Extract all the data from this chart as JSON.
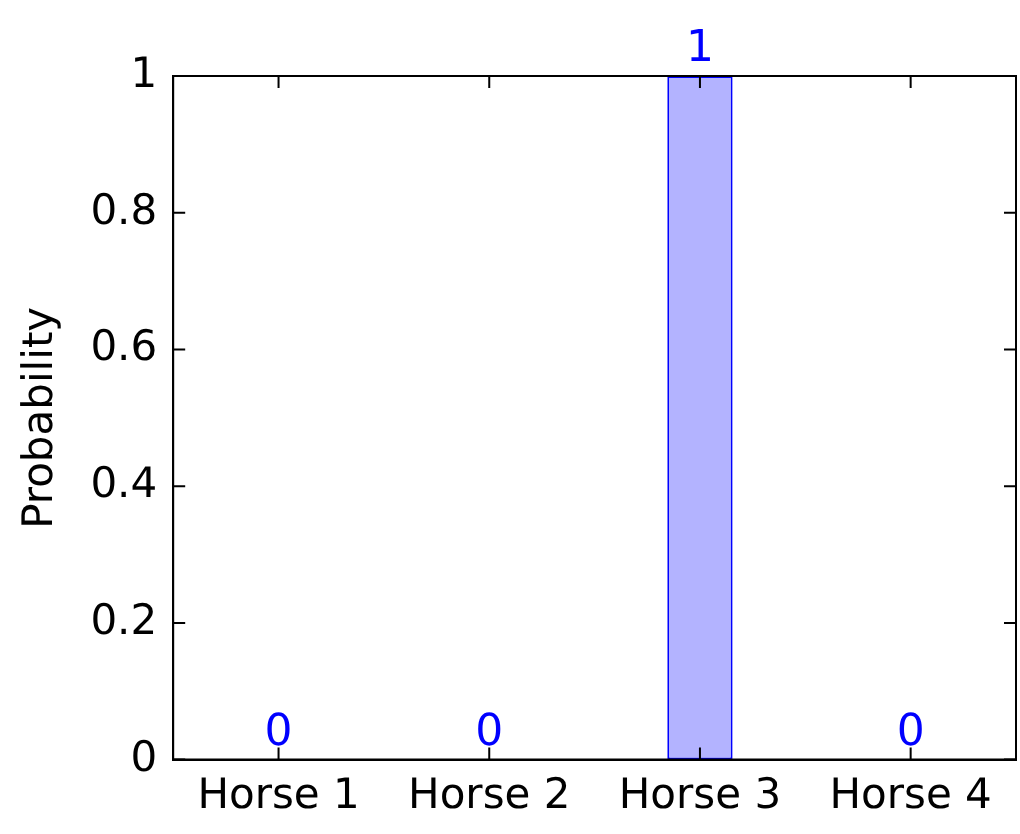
{
  "chart_data": {
    "type": "bar",
    "ylabel": "Probability",
    "categories": [
      "Horse 1",
      "Horse 2",
      "Horse 3",
      "Horse 4"
    ],
    "values": [
      0,
      0,
      1,
      0
    ],
    "color": "#b3b3ff",
    "ylim": [
      0,
      1
    ],
    "yticks": [
      0,
      0.2,
      0.4,
      0.6,
      0.8,
      1
    ],
    "grid": false,
    "legend": false,
    "data_labels": true
  }
}
